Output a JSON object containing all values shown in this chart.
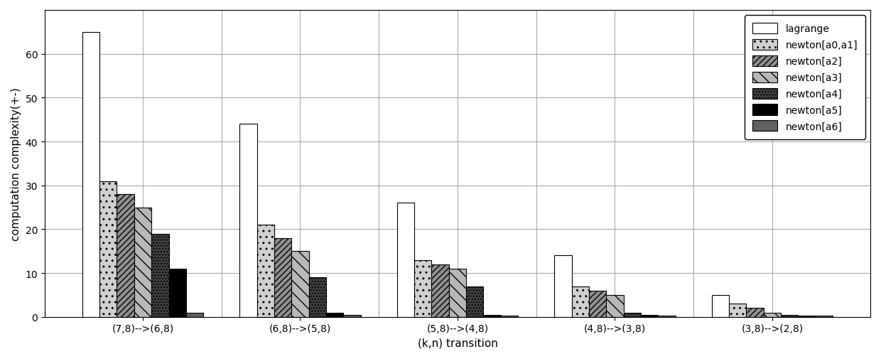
{
  "categories": [
    "(7,8)-->(6,8)",
    "(6,8)-->(5,8)",
    "(5,8)-->(4,8)",
    "(4,8)-->(3,8)",
    "(3,8)-->(2,8)"
  ],
  "series": {
    "lagrange": [
      65,
      44,
      26,
      14,
      5
    ],
    "newton[a0,a1]": [
      31,
      21,
      13,
      7,
      3
    ],
    "newton[a2]": [
      28,
      18,
      12,
      6,
      2
    ],
    "newton[a3]": [
      25,
      15,
      11,
      5,
      1
    ],
    "newton[a4]": [
      19,
      9,
      7,
      1,
      0.5
    ],
    "newton[a5]": [
      11,
      1,
      0.5,
      0.5,
      0.3
    ],
    "newton[a6]": [
      1,
      0.5,
      0.3,
      0.3,
      0.2
    ]
  },
  "xlabel": "(k,n) transition",
  "ylabel": "computation complexity(+-)",
  "ylim": [
    0,
    70
  ],
  "yticks": [
    0,
    10,
    20,
    30,
    40,
    50,
    60
  ],
  "grid_color": "#aaaaaa",
  "bg_color": "#ffffff",
  "bar_width": 0.11,
  "legend_labels": [
    "lagrange",
    "newton[a0,a1]",
    "newton[a2]",
    "newton[a3]",
    "newton[a4]",
    "newton[a5]",
    "newton[a6]"
  ],
  "hatches": [
    "",
    "..",
    "////",
    "\\\\",
    "....",
    "",
    "===="
  ],
  "face_colors": [
    "white",
    "#d0d0d0",
    "#909090",
    "#b8b8b8",
    "#404040",
    "#000000",
    "#606060"
  ],
  "edge_colors": [
    "black",
    "black",
    "black",
    "black",
    "black",
    "black",
    "black"
  ]
}
